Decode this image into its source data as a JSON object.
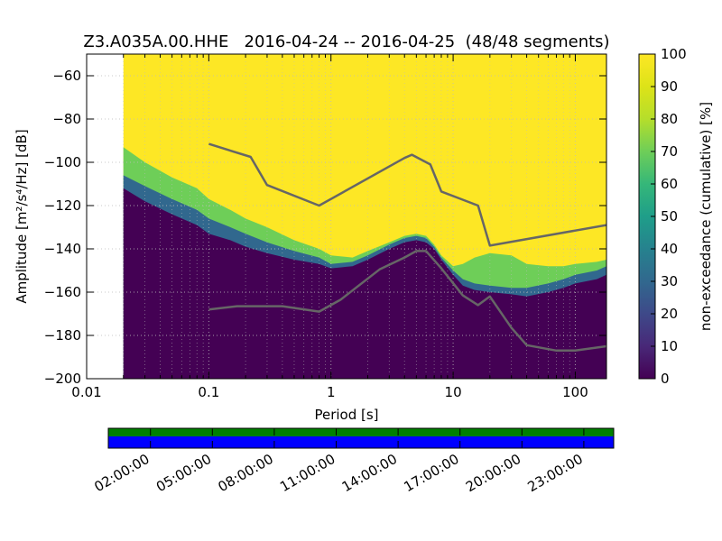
{
  "chart_data": [
    {
      "type": "heatmap",
      "title": "Z3.A035A.00.HHE   2016-04-24 -- 2016-04-25  (48/48 segments)",
      "xlabel": "Period [s]",
      "ylabel": "Amplitude [m²/s⁴/Hz] [dB]",
      "x_scale": "log",
      "xlim": [
        0.01,
        180
      ],
      "ylim": [
        -200,
        -50
      ],
      "x_ticks": [
        {
          "value": 0.01,
          "label": "0.01"
        },
        {
          "value": 0.1,
          "label": "0.1"
        },
        {
          "value": 1,
          "label": "1"
        },
        {
          "value": 10,
          "label": "10"
        },
        {
          "value": 100,
          "label": "100"
        }
      ],
      "y_ticks": [
        {
          "value": -60,
          "label": "−60"
        },
        {
          "value": -80,
          "label": "−80"
        },
        {
          "value": -100,
          "label": "−100"
        },
        {
          "value": -120,
          "label": "−120"
        },
        {
          "value": -140,
          "label": "−140"
        },
        {
          "value": -160,
          "label": "−160"
        },
        {
          "value": -180,
          "label": "−180"
        },
        {
          "value": -200,
          "label": "−200"
        }
      ],
      "grid": true,
      "data_period_min": 0.02,
      "colorbar": {
        "label": "non-exceedance (cumulative) [%]",
        "range": [
          0,
          100
        ],
        "ticks": [
          "0",
          "10",
          "20",
          "30",
          "40",
          "50",
          "60",
          "70",
          "80",
          "90",
          "100"
        ],
        "colormap": "viridis"
      },
      "percentile_bands": {
        "period": [
          0.02,
          0.03,
          0.05,
          0.08,
          0.1,
          0.15,
          0.2,
          0.3,
          0.5,
          0.8,
          1,
          1.5,
          2,
          3,
          4,
          5,
          6,
          7,
          8,
          10,
          12,
          15,
          20,
          30,
          40,
          60,
          80,
          100,
          150,
          180
        ],
        "p0": [
          -124,
          -128,
          -134,
          -137,
          -140,
          -143,
          -145,
          -147,
          -148,
          -150,
          -152,
          -150,
          -147,
          -142,
          -139,
          -138,
          -139,
          -142,
          -148,
          -155,
          -160,
          -162,
          -163,
          -164,
          -165,
          -163,
          -162,
          -160,
          -158,
          -157
        ],
        "p10": [
          -112,
          -118,
          -124,
          -129,
          -133,
          -136,
          -139,
          -142,
          -145,
          -147,
          -149,
          -148,
          -145,
          -140,
          -137,
          -136,
          -137,
          -140,
          -145,
          -152,
          -157,
          -159,
          -160,
          -161,
          -162,
          -160,
          -158,
          -156,
          -154,
          -152
        ],
        "p50": [
          -106,
          -111,
          -117,
          -122,
          -126,
          -130,
          -133,
          -137,
          -141,
          -144,
          -147,
          -146,
          -143,
          -138,
          -135,
          -134,
          -135,
          -139,
          -144,
          -150,
          -154,
          -156,
          -157,
          -158,
          -158,
          -156,
          -154,
          -152,
          -150,
          -148
        ],
        "p90": [
          -93,
          -100,
          -107,
          -112,
          -117,
          -122,
          -126,
          -130,
          -136,
          -140,
          -143,
          -144,
          -141,
          -137,
          -134,
          -133,
          -134,
          -138,
          -143,
          -148,
          -147,
          -144,
          -142,
          -143,
          -147,
          -148,
          -148,
          -147,
          -146,
          -145
        ]
      },
      "series": [
        {
          "period": [
            0.1,
            0.22,
            0.3,
            0.8,
            4,
            4.6,
            6.5,
            8,
            16,
            20,
            180
          ],
          "values": [
            -91.5,
            -97.5,
            -110.5,
            -120,
            -98,
            -96.5,
            -101,
            -113.5,
            -120,
            -138.5,
            -129
          ]
        },
        {
          "period": [
            0.1,
            0.17,
            0.4,
            0.8,
            1.2,
            2.5,
            4,
            5,
            6,
            8,
            12,
            16,
            20,
            30,
            40,
            70,
            100,
            180
          ],
          "values": [
            -168,
            -166.5,
            -166.5,
            -169,
            -163.5,
            -149.5,
            -144,
            -141,
            -141,
            -149,
            -161.5,
            -166,
            -162,
            -176.5,
            -184.5,
            -187,
            -187,
            -185
          ]
        }
      ],
      "series_color": "#666666"
    },
    {
      "type": "timeline",
      "tick_labels": [
        "02:00:00",
        "05:00:00",
        "08:00:00",
        "11:00:00",
        "14:00:00",
        "17:00:00",
        "20:00:00",
        "23:00:00"
      ],
      "bands": [
        {
          "color": "#008000",
          "coverage": 1.0
        },
        {
          "color": "#0000ff",
          "coverage": 1.0
        }
      ]
    }
  ]
}
